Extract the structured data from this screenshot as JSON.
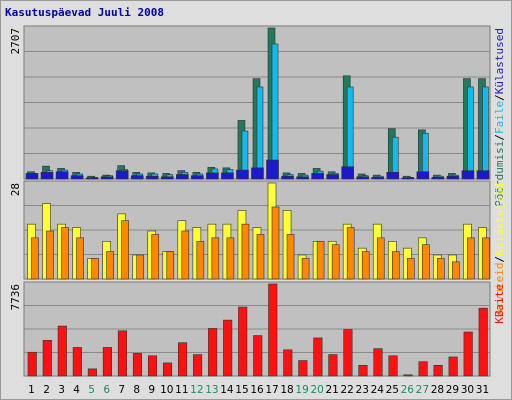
{
  "title": "Kasutuspäevad Juuli 2008",
  "colors": {
    "background": "#dedede",
    "plot": "#c0c0c0",
    "grid": "#8a8a8a",
    "kylastused": "#1a1acc",
    "paringud": "#227a5a",
    "failid": "#11bbee",
    "kylastajad": "#ffff33",
    "arvutid": "#ff8800",
    "kbaite": "#ff1111",
    "weekday_label": "#000000",
    "weekend_label": "#228866"
  },
  "chart_data": [
    {
      "type": "bar",
      "categories": [
        "1",
        "2",
        "3",
        "4",
        "5",
        "6",
        "7",
        "8",
        "9",
        "10",
        "11",
        "12",
        "13",
        "14",
        "15",
        "16",
        "17",
        "18",
        "19",
        "20",
        "21",
        "22",
        "23",
        "24",
        "25",
        "26",
        "27",
        "28",
        "29",
        "30",
        "31"
      ],
      "weekend_days": [
        "5",
        "6",
        "12",
        "13",
        "19",
        "20",
        "26",
        "27"
      ],
      "ymax_label": "2707",
      "ylim": [
        0,
        2707
      ],
      "axis_label_parts": [
        "Pöördumisi",
        "Faile",
        "Külastused"
      ],
      "series": [
        {
          "name": "Pöördumisi",
          "values": [
            130,
            230,
            190,
            120,
            50,
            70,
            240,
            120,
            110,
            100,
            150,
            120,
            210,
            200,
            1050,
            1800,
            2707,
            110,
            100,
            190,
            130,
            1850,
            90,
            70,
            900,
            50,
            880,
            70,
            100,
            1800,
            1800
          ]
        },
        {
          "name": "Faile",
          "values": [
            100,
            150,
            160,
            90,
            30,
            60,
            170,
            90,
            90,
            80,
            120,
            90,
            180,
            170,
            860,
            1650,
            2420,
            80,
            70,
            140,
            100,
            1650,
            60,
            50,
            750,
            30,
            820,
            50,
            70,
            1650,
            1650
          ]
        },
        {
          "name": "Külastused",
          "values": [
            100,
            120,
            130,
            60,
            20,
            40,
            150,
            60,
            50,
            40,
            80,
            60,
            110,
            110,
            160,
            200,
            340,
            50,
            40,
            100,
            80,
            220,
            40,
            30,
            120,
            20,
            130,
            30,
            50,
            150,
            150
          ]
        }
      ]
    },
    {
      "type": "bar",
      "categories": [
        "1",
        "2",
        "3",
        "4",
        "5",
        "6",
        "7",
        "8",
        "9",
        "10",
        "11",
        "12",
        "13",
        "14",
        "15",
        "16",
        "17",
        "18",
        "19",
        "20",
        "21",
        "22",
        "23",
        "24",
        "25",
        "26",
        "27",
        "28",
        "29",
        "30",
        "31"
      ],
      "ymax_label": "28",
      "ylim": [
        0,
        28
      ],
      "axis_label_parts": [
        "Arvuteid",
        "Külastajaid"
      ],
      "series": [
        {
          "name": "Külastajaid",
          "values": [
            16,
            22,
            16,
            15,
            6,
            11,
            19,
            7,
            14,
            8,
            17,
            15,
            16,
            16,
            20,
            15,
            28,
            20,
            7,
            11,
            11,
            16,
            9,
            16,
            11,
            9,
            12,
            7,
            7,
            16,
            15
          ]
        },
        {
          "name": "Arvuteid",
          "values": [
            12,
            14,
            15,
            12,
            6,
            8,
            17,
            7,
            13,
            8,
            14,
            11,
            12,
            12,
            16,
            13,
            21,
            13,
            6,
            11,
            10,
            15,
            8,
            12,
            8,
            6,
            10,
            6,
            5,
            12,
            12
          ]
        }
      ]
    },
    {
      "type": "bar",
      "categories": [
        "1",
        "2",
        "3",
        "4",
        "5",
        "6",
        "7",
        "8",
        "9",
        "10",
        "11",
        "12",
        "13",
        "14",
        "15",
        "16",
        "17",
        "18",
        "19",
        "20",
        "21",
        "22",
        "23",
        "24",
        "25",
        "26",
        "27",
        "28",
        "29",
        "30",
        "31"
      ],
      "ymax_label": "7736",
      "ylim": [
        0,
        7736
      ],
      "axis_label_parts": [
        "KBaite"
      ],
      "series": [
        {
          "name": "KBaite",
          "values": [
            2000,
            3000,
            4200,
            2400,
            600,
            2400,
            3800,
            1900,
            1700,
            1100,
            2800,
            1800,
            4000,
            4700,
            5800,
            3400,
            7736,
            2200,
            1300,
            3200,
            1800,
            3900,
            900,
            2300,
            1700,
            100,
            1200,
            900,
            1600,
            3700,
            5700
          ]
        }
      ]
    }
  ]
}
